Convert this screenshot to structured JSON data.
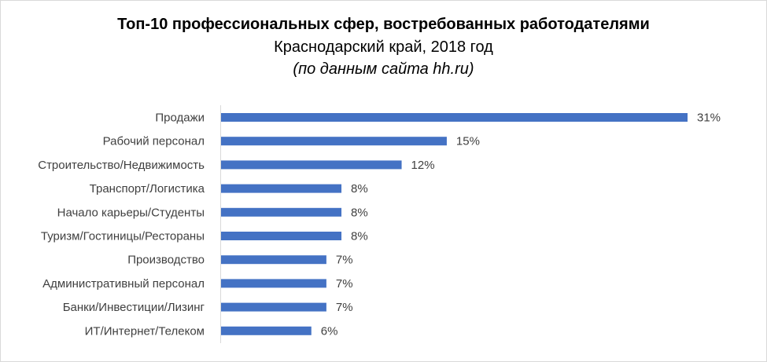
{
  "chart_data": {
    "type": "bar",
    "orientation": "horizontal",
    "title": "Топ-10 профессиональных сфер, востребованных работодателями",
    "subtitle": "Краснодарский край, 2018 год",
    "source_note": "(по данным сайта hh.ru)",
    "categories": [
      "Продажи",
      "Рабочий персонал",
      "Строительство/Недвижимость",
      "Транспорт/Логистика",
      "Начало карьеры/Студенты",
      "Туризм/Гостиницы/Рестораны",
      "Производство",
      "Административный персонал",
      "Банки/Инвестиции/Лизинг",
      "ИТ/Интернет/Телеком"
    ],
    "values": [
      31,
      15,
      12,
      8,
      8,
      8,
      7,
      7,
      7,
      6
    ],
    "value_labels": [
      "31%",
      "15%",
      "12%",
      "8%",
      "8%",
      "8%",
      "7%",
      "7%",
      "7%",
      "6%"
    ],
    "unit": "%",
    "bar_color": "#4472c4",
    "grid": false,
    "legend": "none"
  }
}
